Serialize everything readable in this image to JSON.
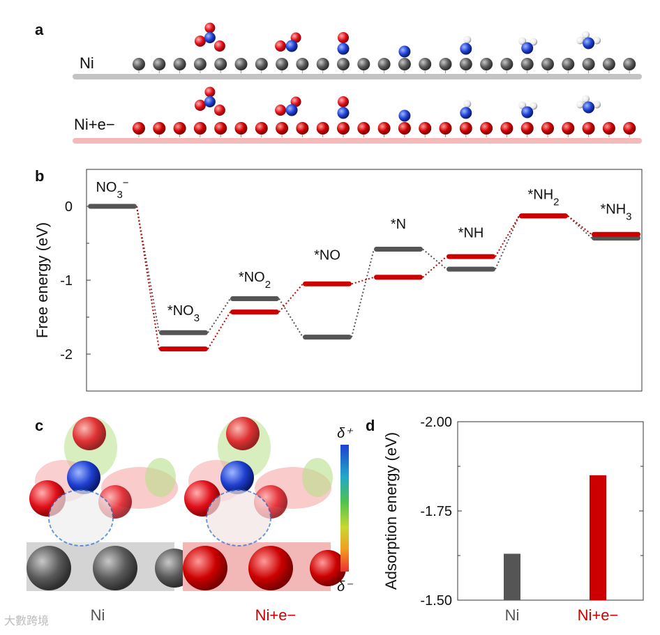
{
  "panels": {
    "a": "a",
    "b": "b",
    "c": "c",
    "d": "d"
  },
  "panel_a": {
    "rows": [
      {
        "label": "Ni",
        "label_color": "#555555",
        "atom_color": "#5a5a5a",
        "slab_color": "#bdbdbd"
      },
      {
        "label": "Ni+e−",
        "label_color": "#cc0000",
        "atom_color": "#cc0000",
        "slab_color": "#f3b3b3"
      }
    ],
    "adsorbates": [
      "*NO3",
      "*NO2",
      "*NO",
      "*N",
      "*NH",
      "*NH2",
      "*NH3"
    ]
  },
  "chart_data": [
    {
      "type": "line",
      "title": "",
      "ylabel": "Free energy (eV)",
      "xlabel": "",
      "ylim": [
        -2.5,
        0.5
      ],
      "yticks": [
        0,
        -1,
        -2
      ],
      "ytick_labels": [
        "0",
        "-1",
        "-2"
      ],
      "steps": [
        "NO3−",
        "*NO3",
        "*NO2",
        "*NO",
        "*N",
        "*NH",
        "*NH2",
        "*NH3"
      ],
      "step_labels": [
        {
          "base": "NO",
          "sub": "3",
          "sup": "−"
        },
        {
          "base": "*NO",
          "sub": "3",
          "sup": ""
        },
        {
          "base": "*NO",
          "sub": "2",
          "sup": ""
        },
        {
          "base": "*NO",
          "sub": "",
          "sup": ""
        },
        {
          "base": "*N",
          "sub": "",
          "sup": ""
        },
        {
          "base": "*NH",
          "sub": "",
          "sup": ""
        },
        {
          "base": "*NH",
          "sub": "2",
          "sup": ""
        },
        {
          "base": "*NH",
          "sub": "3",
          "sup": ""
        }
      ],
      "series": [
        {
          "name": "Ni",
          "color": "#555555",
          "values": [
            0,
            -1.71,
            -1.25,
            -1.77,
            -0.58,
            -0.85,
            -0.13,
            -0.43
          ]
        },
        {
          "name": "Ni+e−",
          "color": "#cc0000",
          "values": [
            0,
            -1.93,
            -1.43,
            -1.05,
            -0.96,
            -0.68,
            -0.13,
            -0.38
          ]
        }
      ]
    },
    {
      "type": "bar",
      "title": "",
      "ylabel": "Adsorption energy (eV)",
      "xlabel": "",
      "categories": [
        "Ni",
        "Ni+e−"
      ],
      "category_colors": [
        "#555555",
        "#cc0000"
      ],
      "values": [
        -1.63,
        -1.85
      ],
      "ylim": [
        -1.5,
        -2.0
      ],
      "yticks": [
        -2.0,
        -1.75,
        -1.5
      ],
      "ytick_labels": [
        "-2.00",
        "-1.75",
        "-1.50"
      ]
    }
  ],
  "panel_c": {
    "captions": [
      "Ni",
      "Ni+e−"
    ],
    "caption_colors": [
      "#555555",
      "#cc0000"
    ],
    "scale_top": "δ⁺",
    "scale_bottom": "δ⁻"
  },
  "watermark": "大數跨境"
}
